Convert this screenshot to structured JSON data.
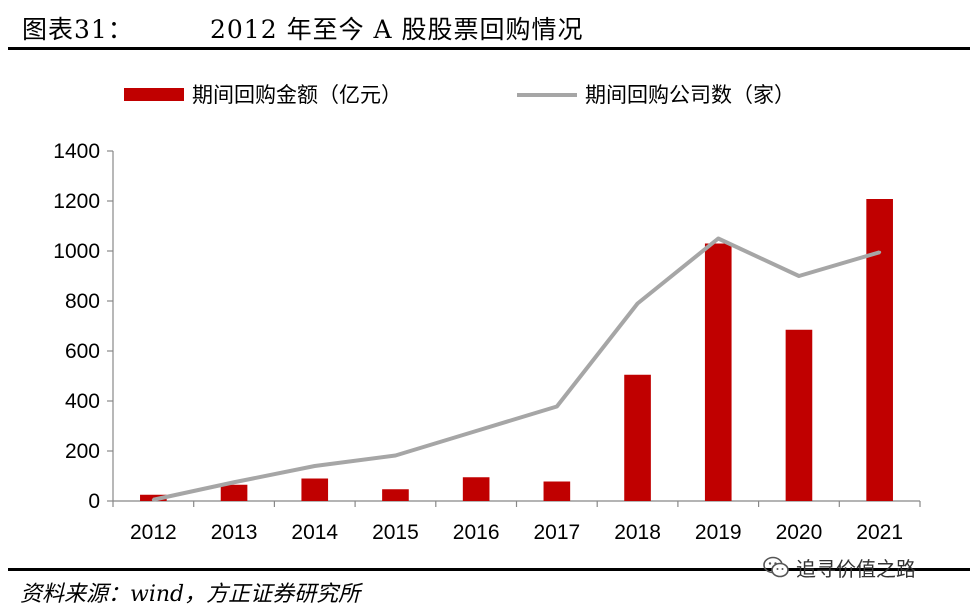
{
  "header": {
    "figure_label": "图表31：",
    "title": "2012 年至今 A 股股票回购情况"
  },
  "footer": {
    "source": "资料来源：wind，方正证券研究所",
    "watermark": "追寻价值之路",
    "watermark_icon": "wechat-icon"
  },
  "chart_data": {
    "type": "bar",
    "categories": [
      "2012",
      "2013",
      "2014",
      "2015",
      "2016",
      "2017",
      "2018",
      "2019",
      "2020",
      "2021"
    ],
    "series": [
      {
        "name": "期间回购金额（亿元）",
        "type": "bar",
        "color": "#C00000",
        "values": [
          25,
          65,
          90,
          47,
          95,
          78,
          505,
          1030,
          685,
          1208
        ]
      },
      {
        "name": "期间回购公司数（家）",
        "type": "line",
        "color": "#A6A6A6",
        "values": [
          5,
          75,
          140,
          182,
          280,
          378,
          790,
          1050,
          900,
          995
        ]
      }
    ],
    "ylim": [
      0,
      1400
    ],
    "yticks": [
      0,
      200,
      400,
      600,
      800,
      1000,
      1200,
      1400
    ],
    "grid": false,
    "legend_position": "top"
  }
}
